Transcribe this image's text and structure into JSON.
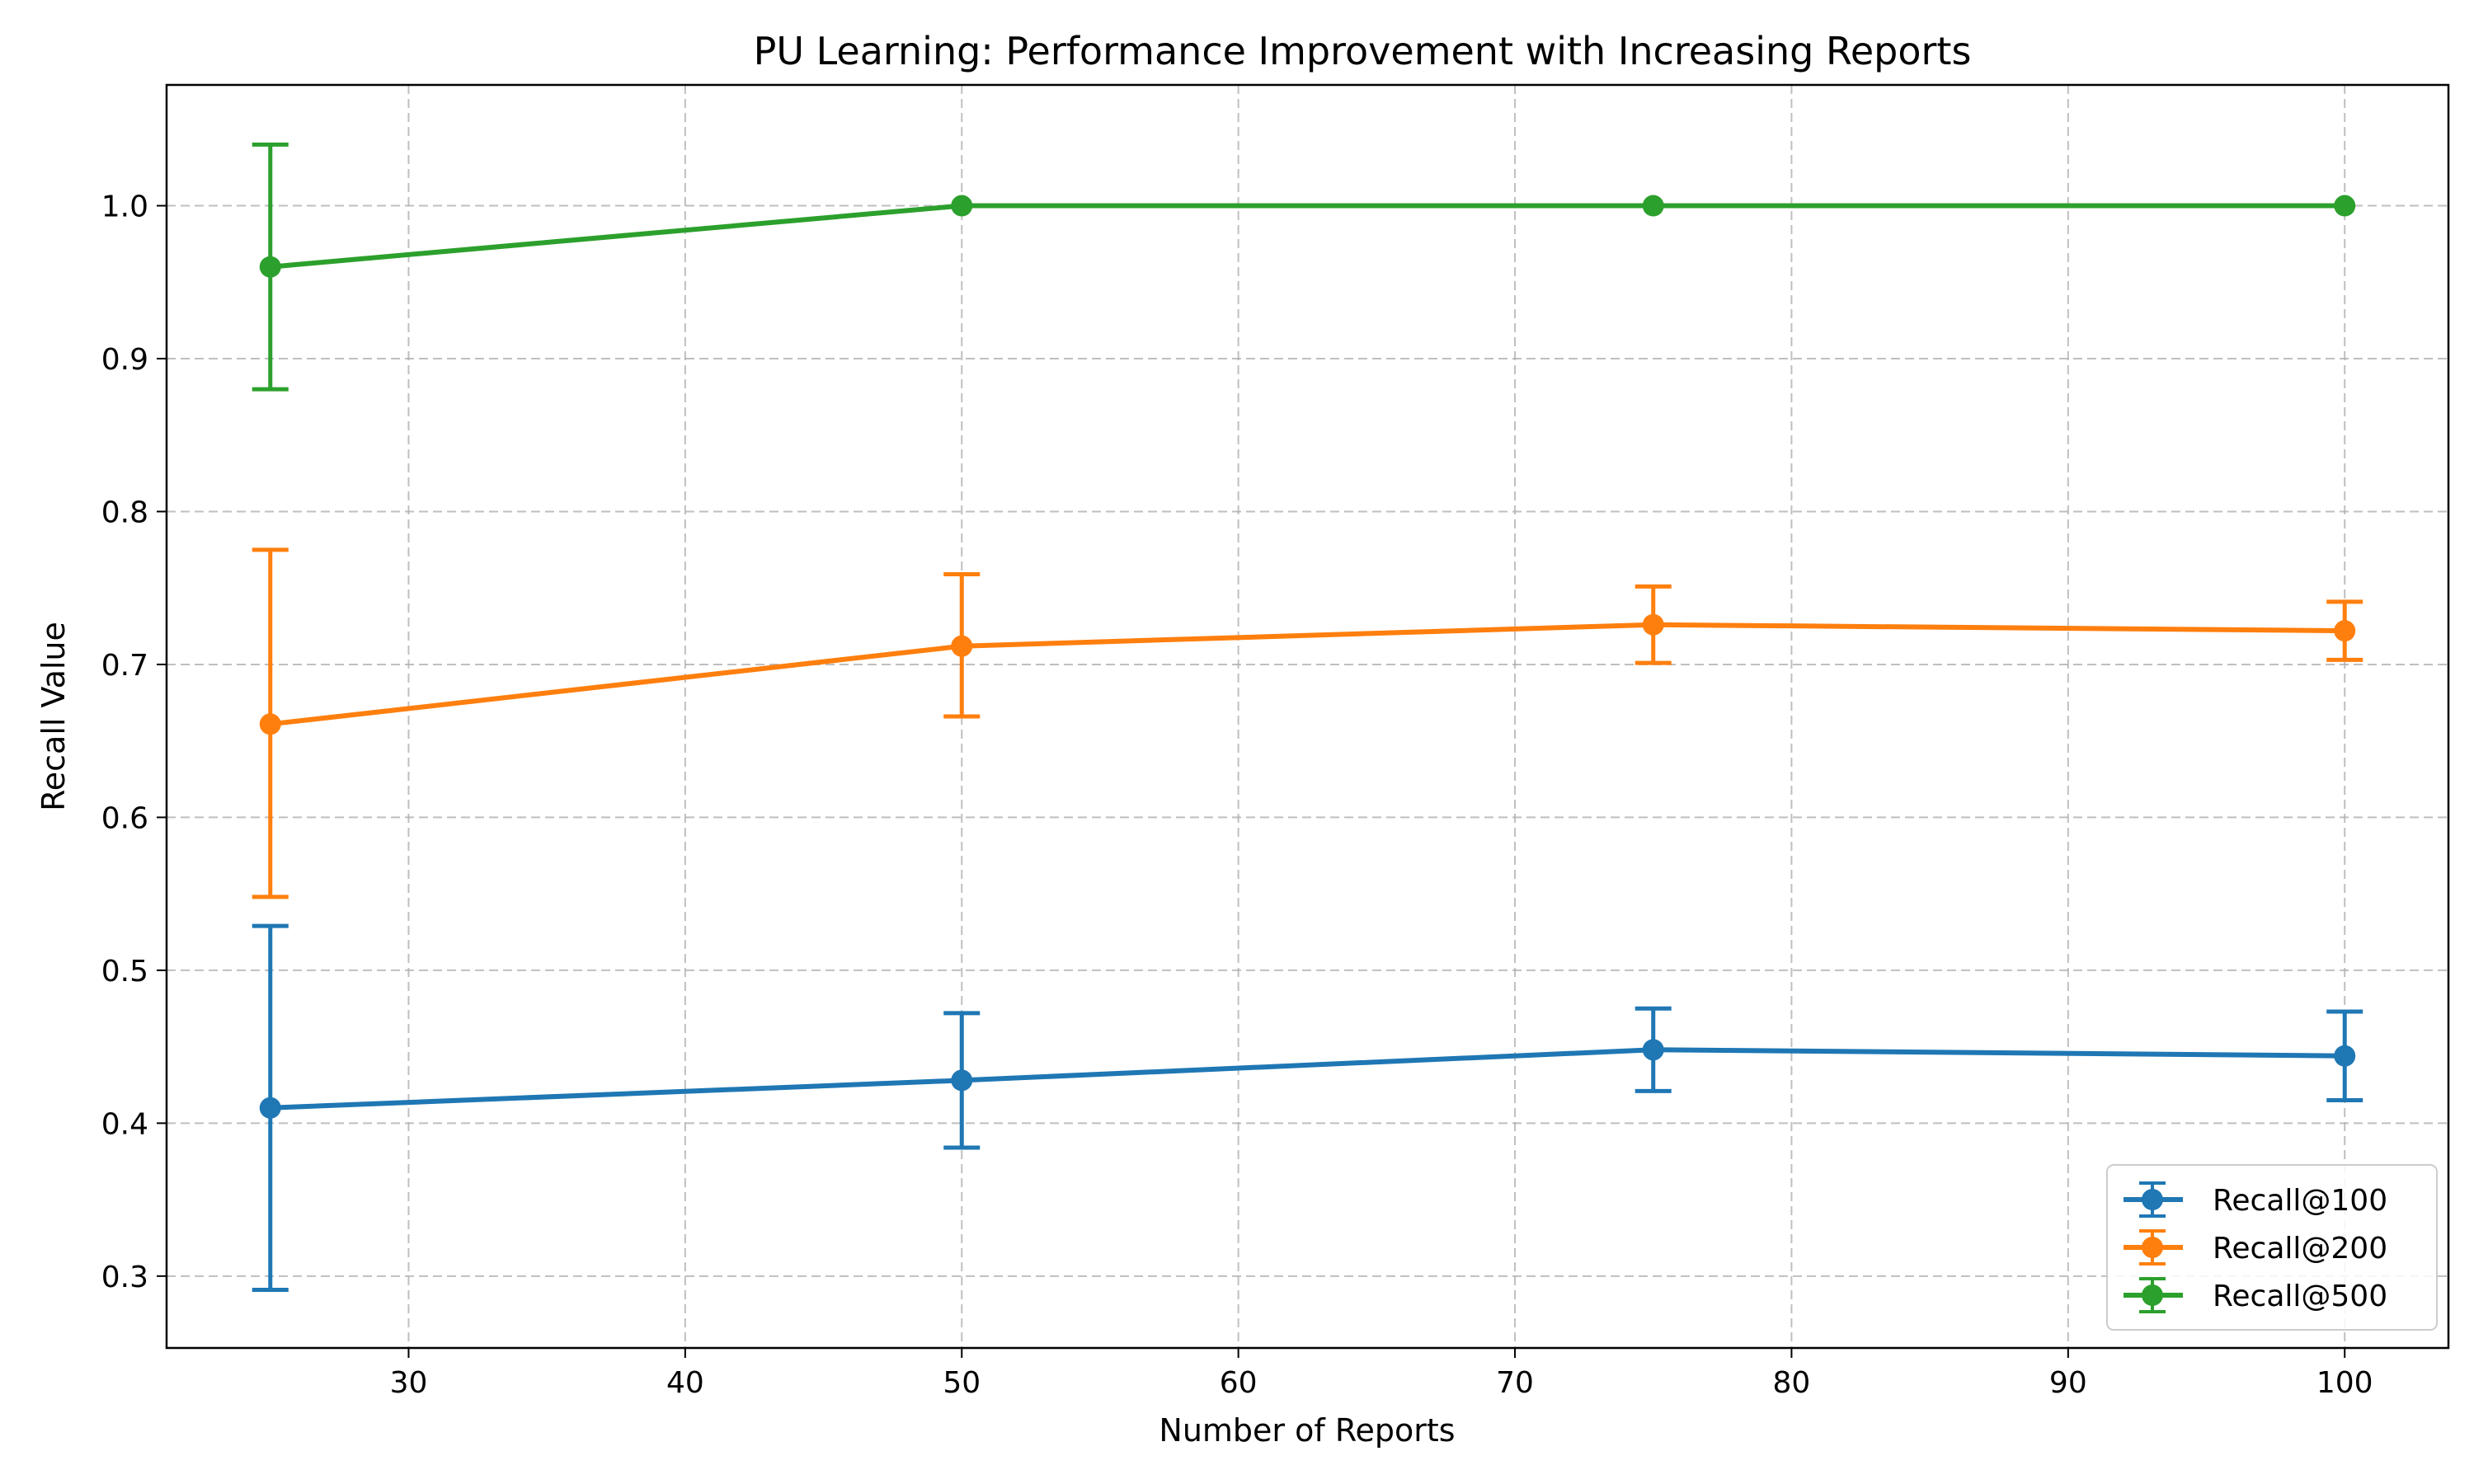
{
  "chart_data": {
    "type": "line",
    "title": "PU Learning: Performance Improvement with Increasing Reports",
    "xlabel": "Number of Reports",
    "ylabel": "Recall Value",
    "x": [
      25,
      50,
      75,
      100
    ],
    "xlim": [
      21.25,
      103.75
    ],
    "ylim": [
      0.253,
      1.079
    ],
    "xticks": [
      30,
      40,
      50,
      60,
      70,
      80,
      90,
      100
    ],
    "yticks": [
      0.3,
      0.4,
      0.5,
      0.6,
      0.7,
      0.8,
      0.9,
      1.0
    ],
    "xtick_labels": [
      "30",
      "40",
      "50",
      "60",
      "70",
      "80",
      "90",
      "100"
    ],
    "ytick_labels": [
      "0.3",
      "0.4",
      "0.5",
      "0.6",
      "0.7",
      "0.8",
      "0.9",
      "1.0"
    ],
    "grid": true,
    "legend_position": "lower-right",
    "series": [
      {
        "name": "Recall@100",
        "color": "#1f77b4",
        "values": [
          0.41,
          0.428,
          0.448,
          0.444
        ],
        "err_low": [
          0.291,
          0.384,
          0.421,
          0.415
        ],
        "err_high": [
          0.529,
          0.472,
          0.475,
          0.473
        ]
      },
      {
        "name": "Recall@200",
        "color": "#ff7f0e",
        "values": [
          0.661,
          0.712,
          0.726,
          0.722
        ],
        "err_low": [
          0.548,
          0.666,
          0.701,
          0.703
        ],
        "err_high": [
          0.775,
          0.759,
          0.751,
          0.741
        ]
      },
      {
        "name": "Recall@500",
        "color": "#2ca02c",
        "values": [
          0.96,
          1.0,
          1.0,
          1.0
        ],
        "err_low": [
          0.88,
          1.0,
          1.0,
          1.0
        ],
        "err_high": [
          1.04,
          1.0,
          1.0,
          1.0
        ]
      }
    ]
  }
}
